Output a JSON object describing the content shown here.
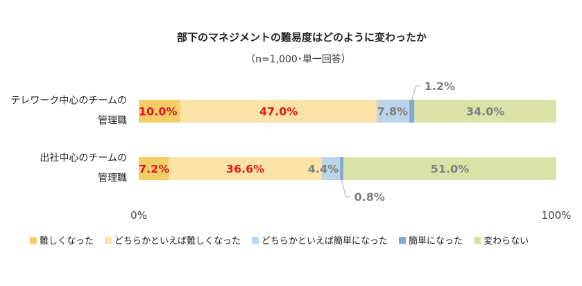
{
  "chart_data": {
    "type": "bar",
    "orientation": "horizontal",
    "stacked": true,
    "normalized": true,
    "title": "部下のマネジメントの難易度はどのように変わったか",
    "subtitle": "（n=1,000･単一回答）",
    "categories": [
      [
        "テレワーク中心のチームの",
        "管理職"
      ],
      [
        "出社中心のチームの",
        "管理職"
      ]
    ],
    "series": [
      {
        "name": "難しくなった",
        "color": "#f2cd68",
        "label_color": "#e0191f",
        "values": [
          10.0,
          7.2
        ],
        "labels": [
          "10.0%",
          "7.2%"
        ]
      },
      {
        "name": "どちらかといえば難しくなった",
        "color": "#fae3a6",
        "label_color": "#e0191f",
        "values": [
          47.0,
          36.6
        ],
        "labels": [
          "47.0%",
          "36.6%"
        ]
      },
      {
        "name": "どちらかといえば簡単になった",
        "color": "#bcd3ea",
        "label_color": "#7f7f7f",
        "values": [
          7.8,
          4.4
        ],
        "labels": [
          "7.8%",
          "4.4%"
        ]
      },
      {
        "name": "簡単になった",
        "color": "#7fa9d3",
        "label_color": "#7f7f7f",
        "values": [
          1.2,
          0.8
        ],
        "labels": [
          "1.2%",
          "0.8%"
        ]
      },
      {
        "name": "変わらない",
        "color": "#dbe2a8",
        "label_color": "#7f7f7f",
        "values": [
          34.0,
          51.0
        ],
        "labels": [
          "34.0%",
          "51.0%"
        ]
      }
    ],
    "xlim": [
      0,
      100
    ],
    "x_ticks": [
      "0%",
      "100%"
    ],
    "grid": false,
    "legend_position": "bottom"
  }
}
